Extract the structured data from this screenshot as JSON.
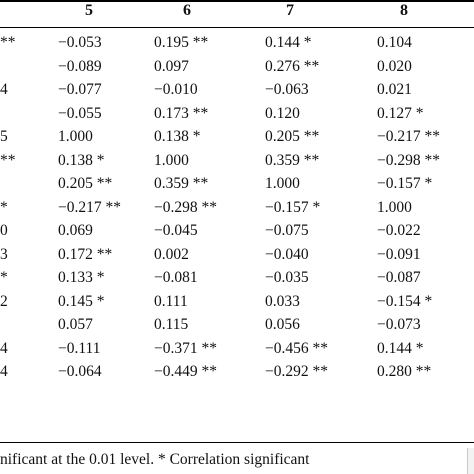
{
  "table": {
    "columns": [
      "5",
      "6",
      "7",
      "8"
    ],
    "left_fragments": [
      "**",
      "",
      "4",
      "",
      "5",
      "**",
      "",
      "*",
      "0",
      "3",
      "*",
      "2",
      "",
      "4",
      "4"
    ],
    "rows": [
      [
        "−0.053",
        "0.195 **",
        "0.144 *",
        "0.104"
      ],
      [
        "−0.089",
        "0.097",
        "0.276 **",
        "0.020"
      ],
      [
        "−0.077",
        "−0.010",
        "−0.063",
        "0.021"
      ],
      [
        "−0.055",
        "0.173 **",
        "0.120",
        "0.127 *"
      ],
      [
        "1.000",
        "0.138 *",
        "0.205 **",
        "−0.217 **"
      ],
      [
        "0.138 *",
        "1.000",
        "0.359 **",
        "−0.298 **"
      ],
      [
        "0.205 **",
        "0.359 **",
        "1.000",
        "−0.157 *"
      ],
      [
        "−0.217 **",
        "−0.298 **",
        "−0.157 *",
        "1.000"
      ],
      [
        "0.069",
        "−0.045",
        "−0.075",
        "−0.022"
      ],
      [
        "0.172 **",
        "0.002",
        "−0.040",
        "−0.091"
      ],
      [
        "0.133 *",
        "−0.081",
        "−0.035",
        "−0.087"
      ],
      [
        "0.145 *",
        "0.111",
        "0.033",
        "−0.154 *"
      ],
      [
        "0.057",
        "0.115",
        "0.056",
        "−0.073"
      ],
      [
        "−0.111",
        "−0.371 **",
        "−0.456 **",
        "0.144 *"
      ],
      [
        "−0.064",
        "−0.449 **",
        "−0.292 **",
        "0.280 **"
      ]
    ],
    "footnote": "nificant at the 0.01 level. * Correlation significant"
  }
}
